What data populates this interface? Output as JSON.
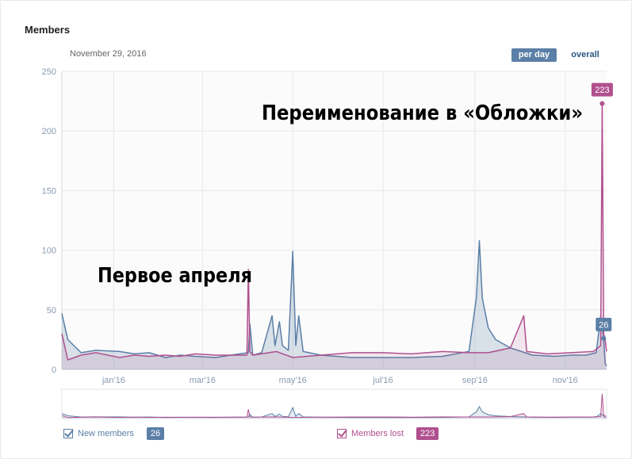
{
  "header": {
    "title": "Members",
    "date": "November 29, 2016"
  },
  "controls": {
    "per_day": "per day",
    "overall": "overall"
  },
  "legend": {
    "new": {
      "label": "New members",
      "value": "26",
      "checked": true
    },
    "lost": {
      "label": "Members lost",
      "value": "223",
      "checked": true
    }
  },
  "colors": {
    "new": "#5b7fa6",
    "lost": "#b0508e",
    "grid": "#e7e8ec",
    "axis": "#8a9bb2"
  },
  "annotations": [
    {
      "text": "Переименование в «Обложки»"
    },
    {
      "text": "Первое апреля"
    }
  ],
  "chart_data": {
    "type": "line",
    "title": "",
    "xlabel": "",
    "ylabel": "",
    "ylim": [
      0,
      250
    ],
    "yticks": [
      0,
      50,
      100,
      150,
      200,
      250
    ],
    "xlim": [
      "2015-11-27",
      "2016-11-29"
    ],
    "xticks": [
      {
        "label": "jan'16",
        "date": "2016-01-01"
      },
      {
        "label": "mar'16",
        "date": "2016-03-01"
      },
      {
        "label": "may'16",
        "date": "2016-05-01"
      },
      {
        "label": "jul'16",
        "date": "2016-07-01"
      },
      {
        "label": "sep'16",
        "date": "2016-09-01"
      },
      {
        "label": "nov'16",
        "date": "2016-11-01"
      }
    ],
    "grid": true,
    "legend_position": "bottom",
    "series": [
      {
        "name": "New members",
        "color_key": "new",
        "fill": true,
        "points": [
          [
            "2015-11-27",
            47
          ],
          [
            "2015-12-01",
            25
          ],
          [
            "2015-12-10",
            14
          ],
          [
            "2015-12-20",
            16
          ],
          [
            "2016-01-05",
            15
          ],
          [
            "2016-01-15",
            13
          ],
          [
            "2016-01-25",
            14
          ],
          [
            "2016-02-05",
            10
          ],
          [
            "2016-02-15",
            12
          ],
          [
            "2016-02-25",
            11
          ],
          [
            "2016-03-10",
            10
          ],
          [
            "2016-03-20",
            12
          ],
          [
            "2016-04-01",
            14
          ],
          [
            "2016-04-02",
            38
          ],
          [
            "2016-04-04",
            12
          ],
          [
            "2016-04-10",
            14
          ],
          [
            "2016-04-17",
            45
          ],
          [
            "2016-04-19",
            20
          ],
          [
            "2016-04-22",
            40
          ],
          [
            "2016-04-24",
            20
          ],
          [
            "2016-04-28",
            16
          ],
          [
            "2016-05-01",
            99
          ],
          [
            "2016-05-03",
            20
          ],
          [
            "2016-05-05",
            45
          ],
          [
            "2016-05-08",
            15
          ],
          [
            "2016-05-20",
            12
          ],
          [
            "2016-06-10",
            10
          ],
          [
            "2016-07-01",
            10
          ],
          [
            "2016-07-20",
            10
          ],
          [
            "2016-08-10",
            11
          ],
          [
            "2016-08-28",
            15
          ],
          [
            "2016-09-02",
            60
          ],
          [
            "2016-09-04",
            108
          ],
          [
            "2016-09-06",
            60
          ],
          [
            "2016-09-10",
            35
          ],
          [
            "2016-09-15",
            25
          ],
          [
            "2016-09-25",
            18
          ],
          [
            "2016-10-10",
            12
          ],
          [
            "2016-10-25",
            11
          ],
          [
            "2016-11-05",
            12
          ],
          [
            "2016-11-15",
            12
          ],
          [
            "2016-11-22",
            14
          ],
          [
            "2016-11-25",
            45
          ],
          [
            "2016-11-27",
            26
          ],
          [
            "2016-11-28",
            5
          ],
          [
            "2016-11-29",
            3
          ]
        ]
      },
      {
        "name": "Members lost",
        "color_key": "lost",
        "fill": true,
        "points": [
          [
            "2015-11-27",
            30
          ],
          [
            "2015-12-01",
            8
          ],
          [
            "2015-12-10",
            12
          ],
          [
            "2015-12-20",
            14
          ],
          [
            "2016-01-05",
            10
          ],
          [
            "2016-01-15",
            12
          ],
          [
            "2016-01-25",
            11
          ],
          [
            "2016-02-05",
            12
          ],
          [
            "2016-02-15",
            11
          ],
          [
            "2016-02-25",
            13
          ],
          [
            "2016-03-10",
            12
          ],
          [
            "2016-03-20",
            12
          ],
          [
            "2016-03-31",
            12
          ],
          [
            "2016-04-01",
            84
          ],
          [
            "2016-04-02",
            15
          ],
          [
            "2016-04-04",
            12
          ],
          [
            "2016-04-20",
            15
          ],
          [
            "2016-05-01",
            10
          ],
          [
            "2016-05-20",
            12
          ],
          [
            "2016-06-10",
            14
          ],
          [
            "2016-07-01",
            14
          ],
          [
            "2016-07-20",
            13
          ],
          [
            "2016-08-10",
            15
          ],
          [
            "2016-08-28",
            14
          ],
          [
            "2016-09-10",
            14
          ],
          [
            "2016-09-25",
            18
          ],
          [
            "2016-10-04",
            45
          ],
          [
            "2016-10-06",
            15
          ],
          [
            "2016-10-20",
            13
          ],
          [
            "2016-11-05",
            14
          ],
          [
            "2016-11-20",
            15
          ],
          [
            "2016-11-25",
            20
          ],
          [
            "2016-11-26",
            223
          ],
          [
            "2016-11-27",
            30
          ],
          [
            "2016-11-28",
            25
          ],
          [
            "2016-11-29",
            15
          ]
        ]
      }
    ],
    "point_labels": [
      {
        "series": 0,
        "date": "2016-11-27",
        "value": 26,
        "text": "26"
      },
      {
        "series": 1,
        "date": "2016-11-26",
        "value": 223,
        "text": "223"
      }
    ]
  }
}
